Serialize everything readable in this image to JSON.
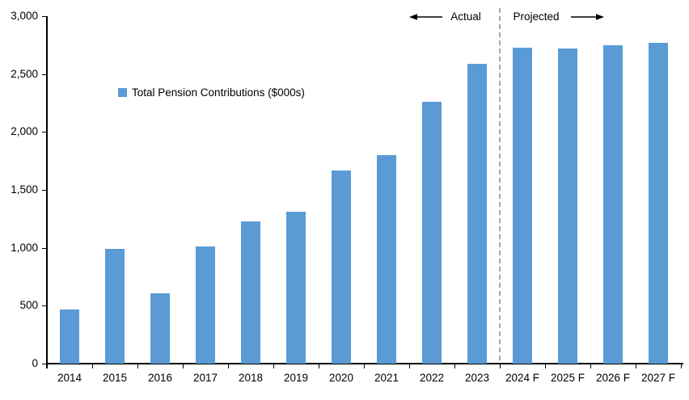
{
  "chart_data": {
    "type": "bar",
    "title": "",
    "legend_label": "Total Pension Contributions ($000s)",
    "categories": [
      "2014",
      "2015",
      "2016",
      "2017",
      "2018",
      "2019",
      "2020",
      "2021",
      "2022",
      "2023",
      "2024 F",
      "2025 F",
      "2026 F",
      "2027 F"
    ],
    "values": [
      470,
      990,
      610,
      1010,
      1230,
      1310,
      1670,
      1800,
      2260,
      2590,
      2730,
      2720,
      2750,
      2770
    ],
    "xlabel": "",
    "ylabel": "",
    "ylim": [
      0,
      3000
    ],
    "y_tick_interval": 500,
    "y_tick_labels": [
      "0",
      "500",
      "1,000",
      "1,500",
      "2,000",
      "2,500",
      "3,000"
    ],
    "grid": false,
    "legend_position": "upper-left",
    "bar_color": "#5B9BD5",
    "axis_color": "#000000",
    "divider": {
      "after_category": "2023",
      "style": "dashed",
      "color": "#ABABAB"
    },
    "annotations": {
      "actual_label": "Actual",
      "projected_label": "Projected"
    }
  }
}
